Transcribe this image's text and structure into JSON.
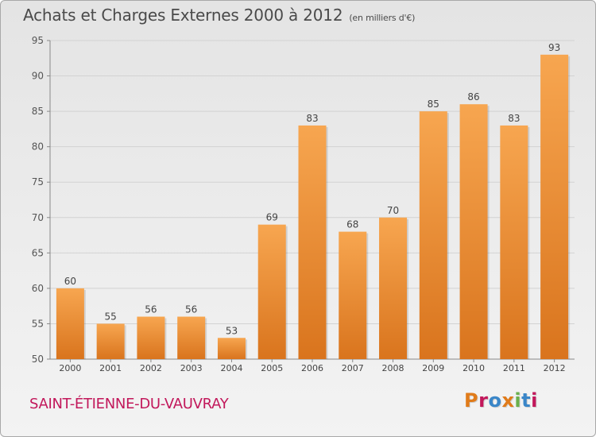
{
  "header": {
    "title": "Achats et Charges Externes 2000 à 2012",
    "unit": "(en milliers d'€)"
  },
  "footer": {
    "commune": "SAINT-ÉTIENNE-DU-VAUVRAY",
    "logo_text": "Proxiti",
    "logo_colors": [
      "#e07b1a",
      "#c2185b",
      "#3a86c8",
      "#e07b1a",
      "#6ab04c",
      "#3a86c8",
      "#c2185b"
    ]
  },
  "chart_data": {
    "type": "bar",
    "title": "Achats et Charges Externes 2000 à 2012",
    "subtitle": "(en milliers d'€)",
    "categories": [
      "2000",
      "2001",
      "2002",
      "2003",
      "2004",
      "2005",
      "2006",
      "2007",
      "2008",
      "2009",
      "2010",
      "2011",
      "2012"
    ],
    "values": [
      60,
      55,
      56,
      56,
      53,
      69,
      83,
      68,
      70,
      85,
      86,
      83,
      93
    ],
    "ylim": [
      50,
      95
    ],
    "yticks": [
      50,
      55,
      60,
      65,
      70,
      75,
      80,
      85,
      90,
      95
    ],
    "grid": true,
    "bar_color_top": "#f7a650",
    "bar_color_bottom": "#d9741d"
  }
}
